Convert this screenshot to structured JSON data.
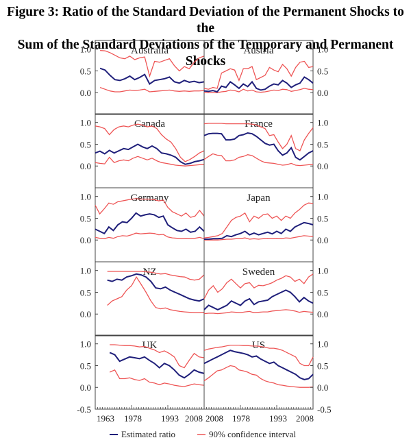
{
  "title": {
    "line1": "Figure 3: Ratio of the Standard Deviation of the Permanent Shocks to the",
    "line2": "Sum of the Standard Deviations of the Temporary and Permanent Shocks"
  },
  "colors": {
    "estimate": "#1f1f7a",
    "confidence": "#ee5555",
    "frame": "#444444"
  },
  "chart_data": {
    "type": "line",
    "layout": "panel-grid 5x2",
    "x_ticks": [
      "1963",
      "1978",
      "1993",
      "2008"
    ],
    "ylim": [
      -0.5,
      1.2
    ],
    "y_ticks": [
      "-0.5",
      "0.0",
      "0.5",
      "1.0"
    ],
    "y_ticks_panel": [
      "0.0",
      "0.5",
      "1.0"
    ],
    "legend": [
      "Estimated ratio",
      "90% confidence interval"
    ],
    "legend_position": "bottom",
    "panels": [
      {
        "name": "Australia",
        "start": 1965,
        "est": [
          0.56,
          0.52,
          0.4,
          0.3,
          0.28,
          0.32,
          0.38,
          0.3,
          0.35,
          0.42,
          0.2,
          0.28,
          0.3,
          0.32,
          0.36,
          0.25,
          0.22,
          0.28,
          0.24,
          0.26,
          0.23,
          0.25
        ],
        "upper": [
          0.97,
          0.96,
          0.92,
          0.86,
          0.8,
          0.78,
          0.84,
          0.76,
          0.8,
          0.82,
          0.38,
          0.72,
          0.7,
          0.74,
          0.78,
          0.62,
          0.5,
          0.6,
          0.55,
          0.7,
          0.8,
          0.84
        ],
        "lower": [
          0.12,
          0.08,
          0.04,
          0.02,
          0.02,
          0.04,
          0.06,
          0.05,
          0.06,
          0.08,
          0.02,
          0.03,
          0.04,
          0.05,
          0.06,
          0.04,
          0.03,
          0.04,
          0.03,
          0.04,
          0.04,
          0.05
        ]
      },
      {
        "name": "Austria",
        "start": 1963,
        "est": [
          0.04,
          0.03,
          0.05,
          0.02,
          0.15,
          0.12,
          0.25,
          0.18,
          0.1,
          0.2,
          0.14,
          0.25,
          0.1,
          0.06,
          0.08,
          0.15,
          0.2,
          0.18,
          0.28,
          0.22,
          0.12,
          0.18,
          0.22,
          0.36,
          0.3,
          0.22
        ],
        "upper": [
          0.1,
          0.08,
          0.12,
          0.1,
          0.45,
          0.5,
          0.55,
          0.52,
          0.28,
          0.55,
          0.55,
          0.6,
          0.3,
          0.35,
          0.4,
          0.58,
          0.52,
          0.48,
          0.65,
          0.55,
          0.38,
          0.58,
          0.7,
          0.72,
          0.58,
          0.6
        ],
        "lower": [
          0.0,
          0.0,
          0.0,
          0.0,
          0.02,
          0.03,
          0.06,
          0.05,
          0.02,
          0.08,
          0.04,
          0.06,
          0.02,
          0.01,
          0.02,
          0.04,
          0.06,
          0.05,
          0.08,
          0.07,
          0.03,
          0.05,
          0.07,
          0.1,
          0.08,
          0.07
        ]
      },
      {
        "name": "Canada",
        "start": 1963,
        "est": [
          0.3,
          0.34,
          0.28,
          0.36,
          0.3,
          0.35,
          0.4,
          0.38,
          0.44,
          0.5,
          0.44,
          0.4,
          0.46,
          0.4,
          0.3,
          0.28,
          0.25,
          0.2,
          0.1,
          0.04,
          0.06,
          0.1,
          0.12,
          0.15
        ],
        "upper": [
          0.92,
          0.9,
          0.86,
          0.72,
          0.84,
          0.9,
          0.92,
          0.9,
          0.94,
          0.96,
          0.94,
          0.9,
          0.92,
          0.86,
          0.72,
          0.62,
          0.55,
          0.4,
          0.2,
          0.1,
          0.15,
          0.22,
          0.3,
          0.35
        ],
        "lower": [
          0.08,
          0.06,
          0.05,
          0.2,
          0.08,
          0.12,
          0.14,
          0.12,
          0.18,
          0.22,
          0.18,
          0.14,
          0.18,
          0.12,
          0.08,
          0.06,
          0.04,
          0.02,
          0.01,
          0.0,
          0.01,
          0.02,
          0.03,
          0.04
        ]
      },
      {
        "name": "France",
        "start": 1963,
        "est": [
          0.7,
          0.74,
          0.75,
          0.75,
          0.74,
          0.6,
          0.6,
          0.62,
          0.7,
          0.72,
          0.76,
          0.74,
          0.68,
          0.6,
          0.52,
          0.48,
          0.5,
          0.35,
          0.25,
          0.3,
          0.42,
          0.2,
          0.14,
          0.22,
          0.3,
          0.35
        ],
        "upper": [
          0.97,
          0.98,
          0.98,
          0.98,
          0.98,
          0.97,
          0.97,
          0.97,
          0.97,
          0.97,
          0.97,
          0.96,
          0.94,
          0.9,
          0.86,
          0.7,
          0.72,
          0.55,
          0.4,
          0.5,
          0.7,
          0.4,
          0.35,
          0.6,
          0.75,
          0.88
        ],
        "lower": [
          0.15,
          0.22,
          0.28,
          0.25,
          0.24,
          0.12,
          0.12,
          0.14,
          0.2,
          0.22,
          0.26,
          0.24,
          0.18,
          0.12,
          0.08,
          0.07,
          0.06,
          0.04,
          0.02,
          0.03,
          0.06,
          0.02,
          0.01,
          0.02,
          0.03,
          0.04
        ]
      },
      {
        "name": "Germany",
        "start": 1963,
        "est": [
          0.25,
          0.2,
          0.15,
          0.3,
          0.22,
          0.35,
          0.42,
          0.4,
          0.5,
          0.62,
          0.55,
          0.58,
          0.6,
          0.58,
          0.52,
          0.55,
          0.35,
          0.28,
          0.22,
          0.2,
          0.25,
          0.18,
          0.2,
          0.3,
          0.2
        ],
        "upper": [
          0.8,
          0.6,
          0.72,
          0.85,
          0.82,
          0.88,
          0.9,
          0.92,
          0.94,
          0.95,
          0.94,
          0.94,
          0.94,
          0.93,
          0.9,
          0.92,
          0.75,
          0.65,
          0.6,
          0.55,
          0.62,
          0.52,
          0.55,
          0.68,
          0.55
        ],
        "lower": [
          0.06,
          0.04,
          0.03,
          0.06,
          0.04,
          0.08,
          0.1,
          0.09,
          0.12,
          0.16,
          0.14,
          0.15,
          0.16,
          0.15,
          0.12,
          0.13,
          0.07,
          0.05,
          0.04,
          0.03,
          0.04,
          0.03,
          0.04,
          0.06,
          0.03
        ]
      },
      {
        "name": "Japan",
        "start": 1963,
        "est": [
          0.02,
          0.02,
          0.03,
          0.03,
          0.04,
          0.1,
          0.08,
          0.12,
          0.15,
          0.2,
          0.12,
          0.16,
          0.12,
          0.15,
          0.18,
          0.14,
          0.2,
          0.15,
          0.25,
          0.2,
          0.3,
          0.35,
          0.4,
          0.38,
          0.35
        ],
        "upper": [
          0.05,
          0.06,
          0.08,
          0.1,
          0.15,
          0.3,
          0.45,
          0.52,
          0.55,
          0.62,
          0.42,
          0.55,
          0.5,
          0.58,
          0.6,
          0.5,
          0.55,
          0.45,
          0.55,
          0.5,
          0.62,
          0.7,
          0.8,
          0.85,
          0.84
        ],
        "lower": [
          0.0,
          0.0,
          0.0,
          0.0,
          0.01,
          0.02,
          0.02,
          0.03,
          0.03,
          0.05,
          0.02,
          0.03,
          0.02,
          0.03,
          0.04,
          0.03,
          0.04,
          0.03,
          0.05,
          0.04,
          0.06,
          0.08,
          0.1,
          0.09,
          0.08
        ]
      },
      {
        "name": "NZ",
        "start": 1968,
        "est": [
          0.78,
          0.75,
          0.8,
          0.78,
          0.85,
          0.88,
          0.92,
          0.9,
          0.85,
          0.75,
          0.6,
          0.58,
          0.62,
          0.55,
          0.5,
          0.45,
          0.4,
          0.35,
          0.32,
          0.3,
          0.35
        ],
        "upper": [
          0.98,
          0.98,
          0.98,
          0.98,
          0.98,
          0.98,
          0.98,
          0.98,
          0.97,
          0.96,
          0.94,
          0.92,
          0.93,
          0.9,
          0.88,
          0.86,
          0.85,
          0.8,
          0.78,
          0.8,
          0.9
        ],
        "lower": [
          0.2,
          0.3,
          0.35,
          0.4,
          0.55,
          0.65,
          0.85,
          0.68,
          0.5,
          0.3,
          0.15,
          0.12,
          0.14,
          0.1,
          0.08,
          0.06,
          0.05,
          0.04,
          0.03,
          0.03,
          0.04
        ]
      },
      {
        "name": "Sweden",
        "start": 1963,
        "est": [
          0.1,
          0.2,
          0.15,
          0.1,
          0.15,
          0.2,
          0.3,
          0.25,
          0.2,
          0.3,
          0.35,
          0.22,
          0.28,
          0.3,
          0.32,
          0.4,
          0.45,
          0.5,
          0.55,
          0.5,
          0.4,
          0.28,
          0.38,
          0.3,
          0.25
        ],
        "upper": [
          0.35,
          0.55,
          0.65,
          0.5,
          0.58,
          0.72,
          0.8,
          0.7,
          0.6,
          0.7,
          0.72,
          0.6,
          0.66,
          0.65,
          0.68,
          0.72,
          0.78,
          0.82,
          0.88,
          0.85,
          0.75,
          0.8,
          0.7,
          0.85,
          0.92
        ],
        "lower": [
          0.01,
          0.02,
          0.02,
          0.01,
          0.02,
          0.03,
          0.05,
          0.04,
          0.03,
          0.05,
          0.06,
          0.03,
          0.04,
          0.05,
          0.05,
          0.07,
          0.08,
          0.09,
          0.1,
          0.09,
          0.07,
          0.04,
          0.06,
          0.05,
          0.04
        ]
      },
      {
        "name": "UK",
        "start": 1969,
        "est": [
          0.8,
          0.75,
          0.6,
          0.65,
          0.7,
          0.68,
          0.66,
          0.7,
          0.62,
          0.55,
          0.45,
          0.55,
          0.5,
          0.4,
          0.28,
          0.22,
          0.3,
          0.4,
          0.35,
          0.32
        ],
        "upper": [
          0.98,
          0.98,
          0.97,
          0.96,
          0.96,
          0.95,
          0.93,
          0.94,
          0.9,
          0.86,
          0.8,
          0.84,
          0.78,
          0.7,
          0.5,
          0.45,
          0.62,
          0.78,
          0.7,
          0.68
        ],
        "lower": [
          0.35,
          0.4,
          0.2,
          0.2,
          0.22,
          0.18,
          0.16,
          0.2,
          0.12,
          0.1,
          0.06,
          0.1,
          0.08,
          0.05,
          0.03,
          0.02,
          0.05,
          0.08,
          0.06,
          0.05
        ]
      },
      {
        "name": "US",
        "start": 1963,
        "est": [
          0.55,
          0.6,
          0.65,
          0.7,
          0.75,
          0.8,
          0.85,
          0.82,
          0.8,
          0.78,
          0.75,
          0.7,
          0.72,
          0.65,
          0.6,
          0.55,
          0.58,
          0.5,
          0.45,
          0.4,
          0.35,
          0.3,
          0.22,
          0.18,
          0.2,
          0.3
        ],
        "upper": [
          0.85,
          0.88,
          0.9,
          0.92,
          0.93,
          0.95,
          0.97,
          0.97,
          0.97,
          0.96,
          0.96,
          0.95,
          0.95,
          0.94,
          0.92,
          0.9,
          0.9,
          0.88,
          0.85,
          0.8,
          0.75,
          0.7,
          0.55,
          0.5,
          0.5,
          0.7
        ],
        "lower": [
          0.15,
          0.22,
          0.3,
          0.38,
          0.4,
          0.45,
          0.5,
          0.48,
          0.4,
          0.38,
          0.35,
          0.3,
          0.28,
          0.2,
          0.15,
          0.12,
          0.1,
          0.06,
          0.05,
          0.03,
          0.02,
          0.01,
          0.0,
          0.0,
          0.0,
          0.01
        ]
      }
    ]
  }
}
